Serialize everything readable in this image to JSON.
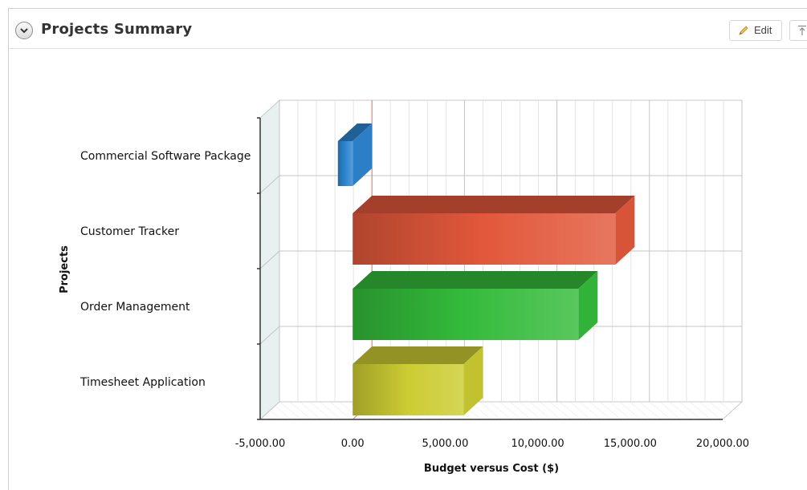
{
  "panel": {
    "title": "Projects Summary",
    "edit_label": "Edit",
    "collapse_icon": "chevron-down-icon",
    "edit_icon": "pencil-icon",
    "pin_icon": "pin-top-icon"
  },
  "chart_data": {
    "type": "bar",
    "orientation": "horizontal",
    "style": "3d",
    "categories": [
      "Commercial Software Package",
      "Customer Tracker",
      "Order Management",
      "Timesheet Application"
    ],
    "values": [
      -800,
      14200,
      12200,
      6000
    ],
    "colors": [
      "#2e86d0",
      "#e2583b",
      "#34bb3b",
      "#cccc33"
    ],
    "xlabel": "Budget versus Cost ($)",
    "ylabel": "Projects",
    "xlim": [
      -5000,
      20000
    ],
    "xticks": [
      "-5,000.00",
      "0.00",
      "5,000.00",
      "10,000.00",
      "15,000.00",
      "20,000.00"
    ],
    "grid": true,
    "legend": "none"
  }
}
